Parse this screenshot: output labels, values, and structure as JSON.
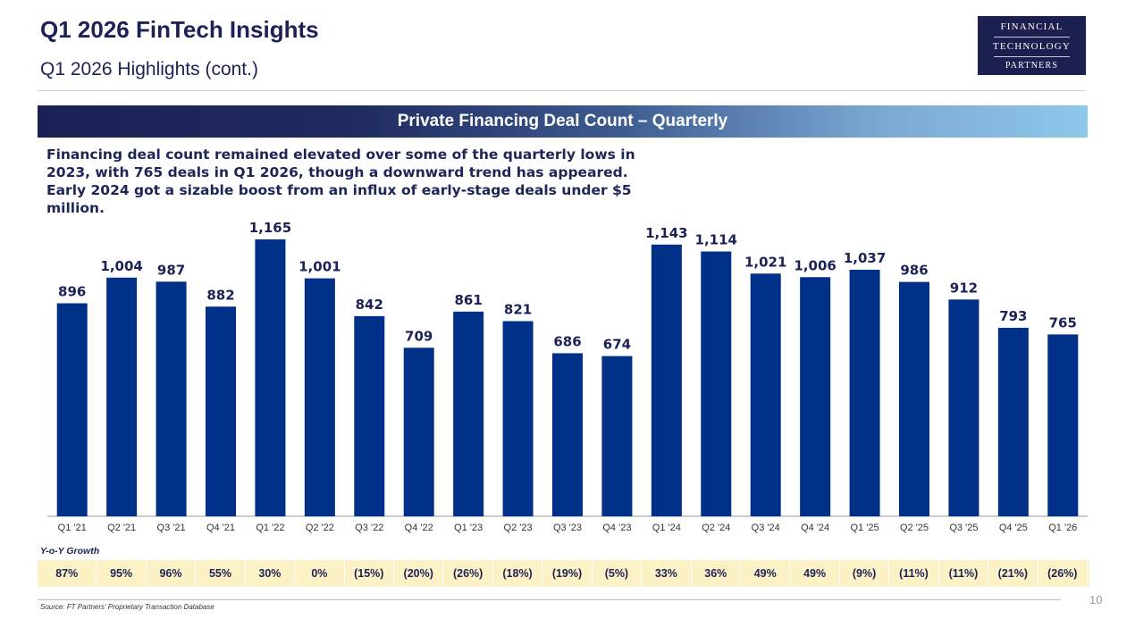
{
  "header": {
    "title": "Q1 2026 FinTech Insights",
    "subtitle": "Q1 2026 Highlights (cont.)"
  },
  "logo": {
    "line1": "FINANCIAL",
    "line2": "TECHNOLOGY",
    "line3": "PARTNERS"
  },
  "banner": {
    "text": "Private Financing Deal Count – Quarterly"
  },
  "description": "Financing deal count remained elevated over some of the quarterly lows in 2023, with 765 deals in Q1 2026, though a downward trend has appeared. Early 2024 got a sizable boost from an influx of early-stage deals under $5 million.",
  "colors": {
    "bar": "#003087",
    "banner_start": "#1c2155",
    "banner_end": "#8fc7ea",
    "growth_bg": "#fdf1c6"
  },
  "chart_data": {
    "type": "bar",
    "title": "Private Financing Deal Count – Quarterly",
    "categories": [
      "Q1 '21",
      "Q2 '21",
      "Q3 '21",
      "Q4 '21",
      "Q1 '22",
      "Q2 '22",
      "Q3 '22",
      "Q4 '22",
      "Q1 '23",
      "Q2 '23",
      "Q3 '23",
      "Q4 '23",
      "Q1 '24",
      "Q2 '24",
      "Q3 '24",
      "Q4 '24",
      "Q1 '25",
      "Q2 '25",
      "Q3 '25",
      "Q4 '25",
      "Q1 '26"
    ],
    "values": [
      896,
      1004,
      987,
      882,
      1165,
      1001,
      842,
      709,
      861,
      821,
      686,
      674,
      1143,
      1114,
      1021,
      1006,
      1037,
      986,
      912,
      793,
      765
    ],
    "value_labels": [
      "896",
      "1,004",
      "987",
      "882",
      "1,165",
      "1,001",
      "842",
      "709",
      "861",
      "821",
      "686",
      "674",
      "1,143",
      "1,114",
      "1,021",
      "1,006",
      "1,037",
      "986",
      "912",
      "793",
      "765"
    ],
    "ylim": [
      0,
      1240
    ],
    "xlabel": "",
    "ylabel": "",
    "grid": false
  },
  "growth": {
    "label": "Y-o-Y Growth",
    "values": [
      "87%",
      "95%",
      "96%",
      "55%",
      "30%",
      "0%",
      "(15%)",
      "(20%)",
      "(26%)",
      "(18%)",
      "(19%)",
      "(5%)",
      "33%",
      "36%",
      "49%",
      "49%",
      "(9%)",
      "(11%)",
      "(11%)",
      "(21%)",
      "(26%)"
    ]
  },
  "footer": {
    "source": "Source: FT Partners' Proprietary Transaction Database",
    "page": "10"
  }
}
